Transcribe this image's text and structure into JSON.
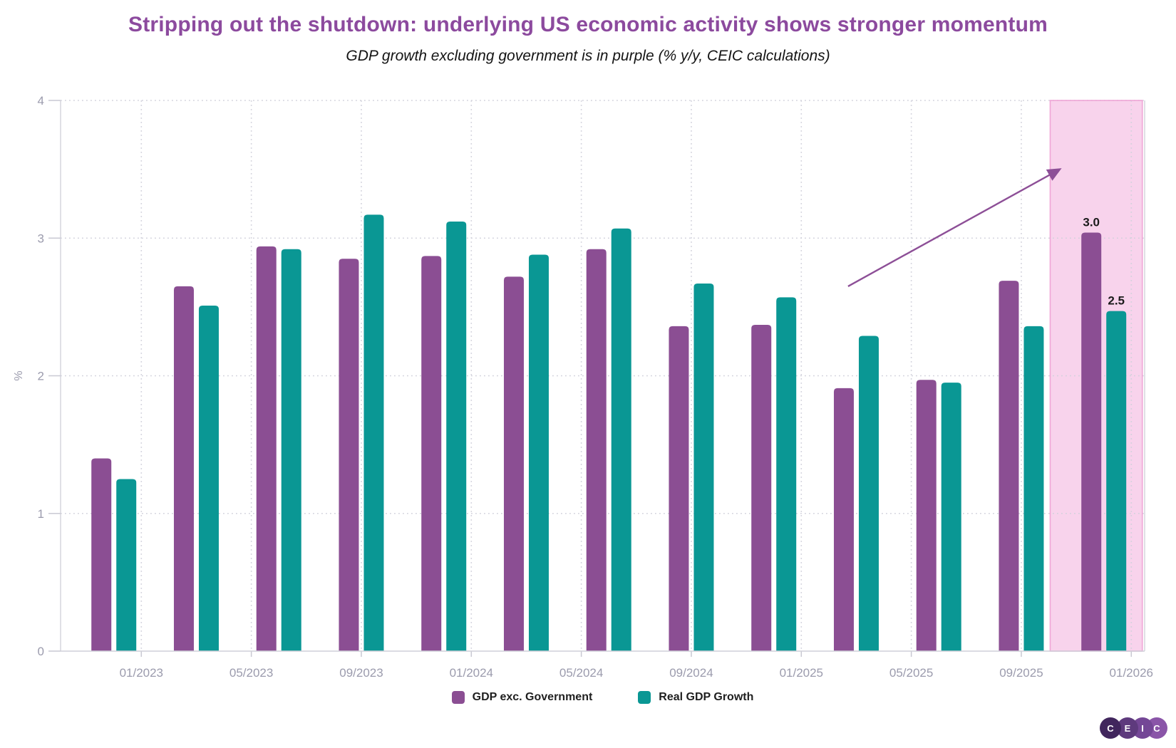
{
  "chart_data": {
    "type": "bar",
    "title": "Stripping out the shutdown: underlying US economic activity shows stronger momentum",
    "subtitle": "GDP growth excluding government is in purple (% y/y, CEIC calculations)",
    "title_color": "#8c4a9e",
    "ylabel": "%",
    "ylim": [
      0,
      4
    ],
    "yticks": [
      0,
      1,
      2,
      3,
      4
    ],
    "xticks": [
      "01/2023",
      "05/2023",
      "09/2023",
      "01/2024",
      "05/2024",
      "09/2024",
      "01/2025",
      "05/2025",
      "09/2025",
      "01/2026"
    ],
    "categories": [
      "2022-Q4",
      "2023-Q1",
      "2023-Q2",
      "2023-Q3",
      "2023-Q4",
      "2024-Q1",
      "2024-Q2",
      "2024-Q3",
      "2024-Q4",
      "2025-Q1",
      "2025-Q2",
      "2025-Q3",
      "2025-Q4"
    ],
    "series": [
      {
        "name": "GDP exc. Government",
        "color": "#8b4e93",
        "values": [
          1.4,
          2.65,
          2.94,
          2.85,
          2.87,
          2.72,
          2.92,
          2.36,
          2.37,
          1.91,
          1.97,
          2.69,
          3.04
        ]
      },
      {
        "name": "Real GDP Growth",
        "color": "#0a9794",
        "values": [
          1.25,
          2.51,
          2.92,
          3.17,
          3.12,
          2.88,
          3.07,
          2.67,
          2.57,
          2.29,
          1.95,
          2.36,
          2.47
        ]
      }
    ],
    "data_labels": [
      {
        "text": "3.0",
        "series_index": 0,
        "category": "2025-Q4"
      },
      {
        "text": "2.5",
        "series_index": 1,
        "category": "2025-Q4"
      }
    ],
    "highlight_region": {
      "x_months_from_jan2023": [
        33.05,
        36.4
      ],
      "fill": "#f8d3ec",
      "border_color": "#efa5d6"
    },
    "annotation_arrow": {
      "from": {
        "x_months_from_jan2023": 25.7,
        "y_value": 2.65
      },
      "to": {
        "x_months_from_jan2023": 33.4,
        "y_value": 3.5
      },
      "color": "#8d4f97"
    },
    "grid": "dotted",
    "legend_position": "bottom",
    "axis_text_color": "#9b9bad"
  },
  "logo": {
    "letters": [
      "C",
      "E",
      "I",
      "C"
    ],
    "colors": [
      "#41265d",
      "#5e3a7d",
      "#744796",
      "#8a55a8"
    ]
  }
}
